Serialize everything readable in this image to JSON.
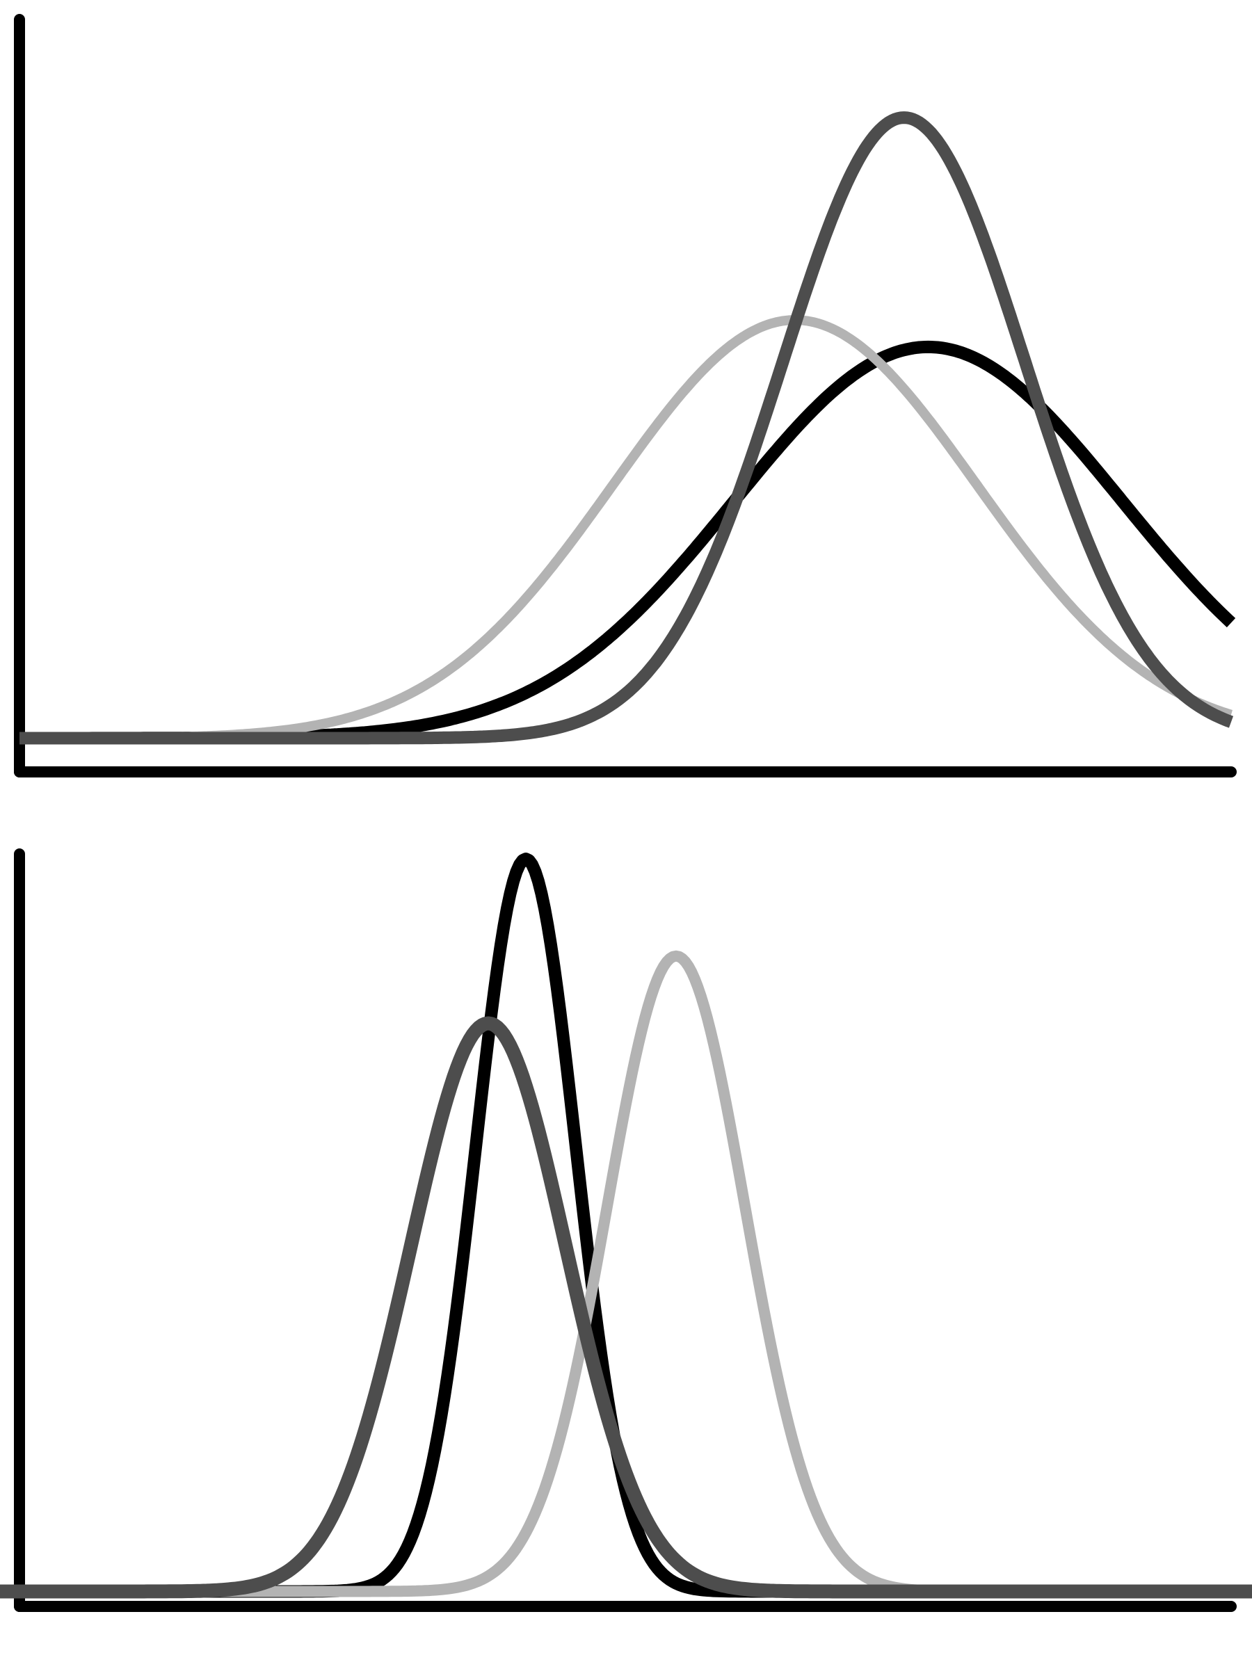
{
  "chart_data": [
    {
      "type": "line",
      "title": "",
      "xlabel": "",
      "ylabel": "",
      "xlim": [
        0,
        10
      ],
      "ylim": [
        0,
        1
      ],
      "grid": false,
      "legend": "none",
      "series": [
        {
          "color": "#000000",
          "kind": "gaussian",
          "amplitude": 0.58,
          "mean": 7.5,
          "sd": 1.6,
          "baseline": 0.05
        },
        {
          "color": "#b3b3b3",
          "kind": "gaussian",
          "amplitude": 0.62,
          "mean": 6.4,
          "sd": 1.5,
          "baseline": 0.05
        },
        {
          "color": "#4d4d4d",
          "kind": "gaussian",
          "amplitude": 0.92,
          "mean": 7.3,
          "sd": 1.0,
          "baseline": 0.05
        }
      ]
    },
    {
      "type": "line",
      "title": "",
      "xlabel": "",
      "ylabel": "",
      "xlim": [
        0,
        10
      ],
      "ylim": [
        0,
        1
      ],
      "grid": false,
      "legend": "none",
      "series": [
        {
          "color": "#000000",
          "kind": "gaussian",
          "amplitude": 0.98,
          "mean": 4.2,
          "sd": 0.4,
          "baseline": 0.02
        },
        {
          "color": "#b3b3b3",
          "kind": "gaussian",
          "amplitude": 0.85,
          "mean": 5.4,
          "sd": 0.55,
          "baseline": 0.02
        },
        {
          "color": "#4d4d4d",
          "kind": "gaussian",
          "amplitude": 0.76,
          "mean": 3.9,
          "sd": 0.62,
          "baseline": 0.02
        }
      ]
    }
  ]
}
